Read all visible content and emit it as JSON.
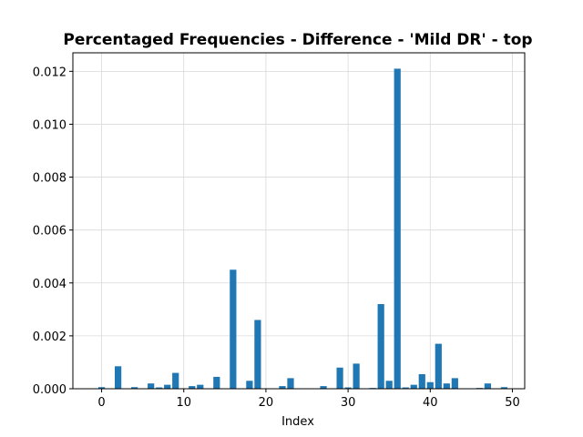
{
  "chart_data": {
    "type": "bar",
    "title": "Percentaged Frequencies - Difference - 'Mild DR' - top",
    "xlabel": "Index",
    "ylabel": "",
    "xlim": [
      -3.5,
      51.5
    ],
    "ylim": [
      0,
      0.0127
    ],
    "xticks": [
      0,
      10,
      20,
      30,
      40,
      50
    ],
    "xtick_labels": [
      "0",
      "10",
      "20",
      "30",
      "40",
      "50"
    ],
    "yticks": [
      0,
      0.002,
      0.004,
      0.006,
      0.008,
      0.01,
      0.012
    ],
    "ytick_labels": [
      "0.000",
      "0.002",
      "0.004",
      "0.006",
      "0.008",
      "0.010",
      "0.012"
    ],
    "grid": true,
    "bar_color": "#1f77b4",
    "x": [
      0,
      2,
      4,
      6,
      7,
      8,
      9,
      11,
      12,
      14,
      16,
      18,
      19,
      22,
      23,
      27,
      29,
      30,
      31,
      33,
      34,
      35,
      36,
      37,
      38,
      39,
      40,
      41,
      42,
      43,
      46,
      47,
      49
    ],
    "values": [
      6e-05,
      0.00085,
      6e-05,
      0.0002,
      5e-05,
      0.00015,
      0.0006,
      0.0001,
      0.00015,
      0.00045,
      0.0045,
      0.0003,
      0.0026,
      0.0001,
      0.0004,
      0.0001,
      0.0008,
      5e-05,
      0.00095,
      3e-05,
      0.0032,
      0.0003,
      0.0121,
      5e-05,
      0.00015,
      0.00055,
      0.00025,
      0.0017,
      0.0002,
      0.0004,
      3e-05,
      0.0002,
      6e-05
    ]
  }
}
